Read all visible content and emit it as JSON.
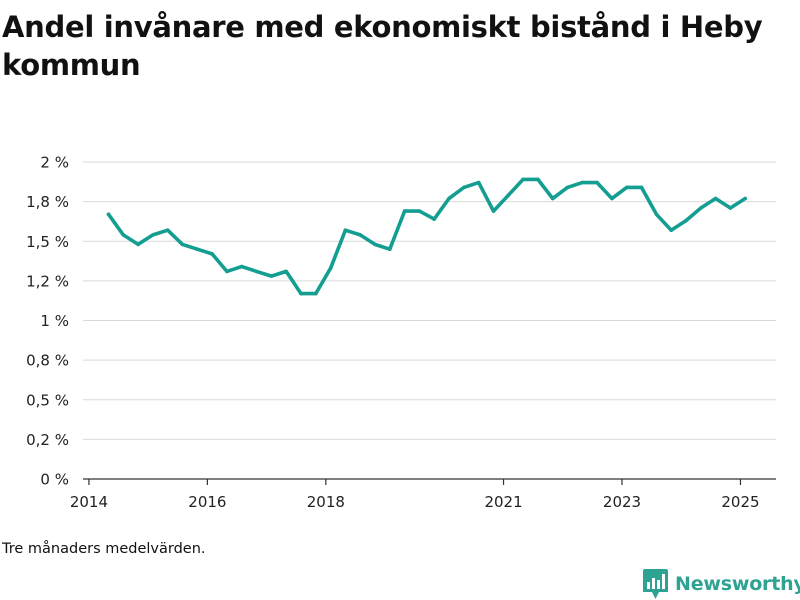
{
  "title": "Andel invånare med ekonomiskt bistånd i Heby kommun",
  "footnote": "Tre månaders medelvärden.",
  "brand": {
    "name": "Newsworthy",
    "logo_icon": "bar-chart-flag-icon",
    "color": "#2fa393"
  },
  "colors": {
    "line": "#139e91",
    "grid": "#d9d9d9",
    "axis": "#333333"
  },
  "chart_data": {
    "type": "line",
    "title": "Andel invånare med ekonomiskt bistånd i Heby kommun",
    "xlabel": "",
    "ylabel": "",
    "grid": true,
    "legend": "none",
    "xlim": [
      2013.9,
      2025.6
    ],
    "ylim": [
      0,
      2
    ],
    "x_ticks": [
      {
        "value": 2014,
        "label": "2014"
      },
      {
        "value": 2016,
        "label": "2016"
      },
      {
        "value": 2018,
        "label": "2018"
      },
      {
        "value": 2021,
        "label": "2021"
      },
      {
        "value": 2023,
        "label": "2023"
      },
      {
        "value": 2025,
        "label": "2025"
      }
    ],
    "y_ticks": [
      {
        "value": 0,
        "label": "0 %"
      },
      {
        "value": 0.25,
        "label": "0,2 %"
      },
      {
        "value": 0.5,
        "label": "0,5 %"
      },
      {
        "value": 0.75,
        "label": "0,8 %"
      },
      {
        "value": 1.0,
        "label": "1 %"
      },
      {
        "value": 1.25,
        "label": "1,2 %"
      },
      {
        "value": 1.5,
        "label": "1,5 %"
      },
      {
        "value": 1.75,
        "label": "1,8 %"
      },
      {
        "value": 2.0,
        "label": "2 %"
      }
    ],
    "series": [
      {
        "x": [
          2014.33,
          2014.58,
          2014.83,
          2015.08,
          2015.33,
          2015.58,
          2015.83,
          2016.08,
          2016.33,
          2016.58,
          2016.83,
          2017.08,
          2017.33,
          2017.58,
          2017.83,
          2018.08,
          2018.33,
          2018.58,
          2018.83,
          2019.08,
          2019.33,
          2019.58,
          2019.83,
          2020.08,
          2020.33,
          2020.58,
          2020.83,
          2021.08,
          2021.33,
          2021.58,
          2021.83,
          2022.08,
          2022.33,
          2022.58,
          2022.83,
          2023.08,
          2023.33,
          2023.58,
          2023.83,
          2024.08,
          2024.33,
          2024.58,
          2024.83,
          2025.08
        ],
        "values": [
          1.67,
          1.54,
          1.48,
          1.54,
          1.57,
          1.48,
          1.45,
          1.42,
          1.31,
          1.34,
          1.31,
          1.28,
          1.31,
          1.17,
          1.17,
          1.33,
          1.57,
          1.54,
          1.48,
          1.45,
          1.69,
          1.69,
          1.64,
          1.77,
          1.84,
          1.87,
          1.69,
          1.79,
          1.89,
          1.89,
          1.77,
          1.84,
          1.87,
          1.87,
          1.77,
          1.84,
          1.84,
          1.67,
          1.57,
          1.63,
          1.71,
          1.77,
          1.71,
          1.77
        ]
      }
    ]
  }
}
